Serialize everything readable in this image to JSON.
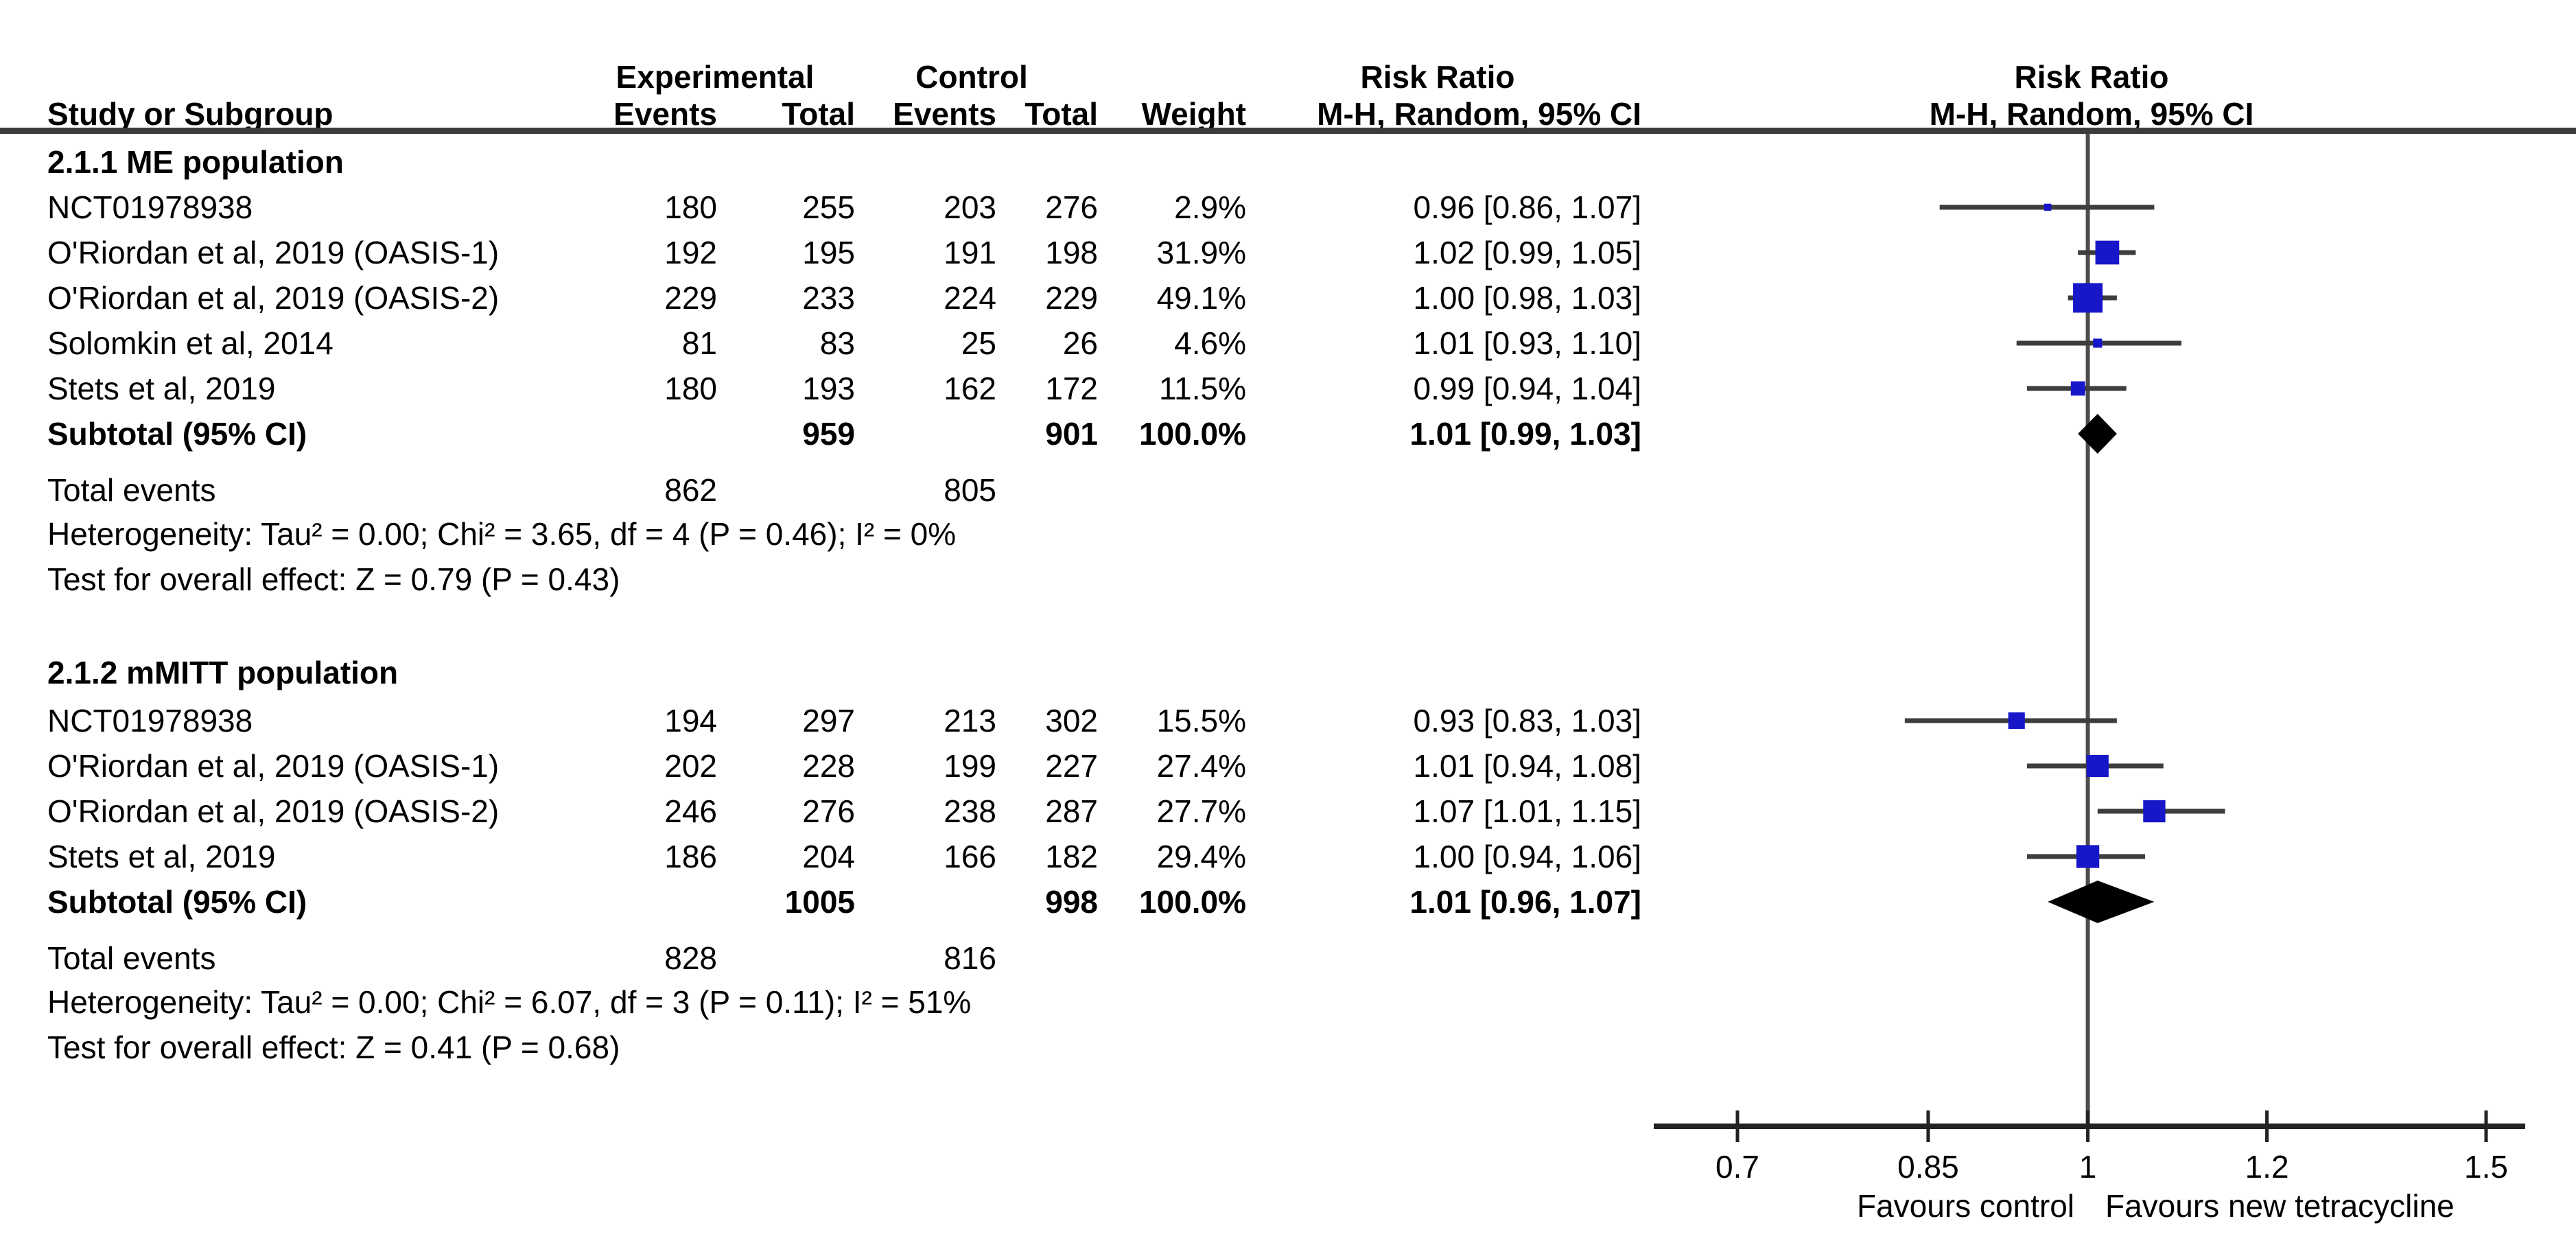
{
  "table_header": {
    "study_col": "Study or Subgroup",
    "experimental_group": "Experimental",
    "control_group": "Control",
    "events": "Events",
    "total": "Total",
    "weight": "Weight",
    "risk_ratio_col_title": "Risk Ratio",
    "risk_ratio_col_sub": "M-H, Random, 95% CI",
    "risk_ratio_plot_title": "Risk Ratio",
    "risk_ratio_plot_sub": "M-H, Random, 95% CI"
  },
  "chart_data": {
    "type": "forest",
    "scale": "log",
    "effect_measure": "Risk Ratio (M-H, Random, 95% CI)",
    "axis": {
      "ticks": [
        0.7,
        0.85,
        1,
        1.2,
        1.5
      ],
      "tick_labels": [
        "0.7",
        "0.85",
        "1",
        "1.2",
        "1.5"
      ],
      "null_line": 1,
      "favours_left": "Favours control",
      "favours_right": "Favours new tetracycline"
    },
    "marker_color": "#1717c9",
    "diamond_color": "#000000",
    "groups": [
      {
        "title": "2.1.1 ME population",
        "studies": [
          {
            "name": "NCT01978938",
            "exp_events": 180,
            "exp_total": 255,
            "ctrl_events": 203,
            "ctrl_total": 276,
            "weight": "2.9%",
            "weight_pct": 2.9,
            "rr": 0.96,
            "ci_low": 0.86,
            "ci_high": 1.07,
            "rr_text": "0.96 [0.86, 1.07]"
          },
          {
            "name": "O'Riordan et al, 2019 (OASIS-1)",
            "exp_events": 192,
            "exp_total": 195,
            "ctrl_events": 191,
            "ctrl_total": 198,
            "weight": "31.9%",
            "weight_pct": 31.9,
            "rr": 1.02,
            "ci_low": 0.99,
            "ci_high": 1.05,
            "rr_text": "1.02 [0.99, 1.05]"
          },
          {
            "name": "O'Riordan et al, 2019 (OASIS-2)",
            "exp_events": 229,
            "exp_total": 233,
            "ctrl_events": 224,
            "ctrl_total": 229,
            "weight": "49.1%",
            "weight_pct": 49.1,
            "rr": 1.0,
            "ci_low": 0.98,
            "ci_high": 1.03,
            "rr_text": "1.00 [0.98, 1.03]"
          },
          {
            "name": "Solomkin et al, 2014",
            "exp_events": 81,
            "exp_total": 83,
            "ctrl_events": 25,
            "ctrl_total": 26,
            "weight": "4.6%",
            "weight_pct": 4.6,
            "rr": 1.01,
            "ci_low": 0.93,
            "ci_high": 1.1,
            "rr_text": "1.01 [0.93, 1.10]"
          },
          {
            "name": "Stets et al, 2019",
            "exp_events": 180,
            "exp_total": 193,
            "ctrl_events": 162,
            "ctrl_total": 172,
            "weight": "11.5%",
            "weight_pct": 11.5,
            "rr": 0.99,
            "ci_low": 0.94,
            "ci_high": 1.04,
            "rr_text": "0.99 [0.94, 1.04]"
          }
        ],
        "subtotal": {
          "label": "Subtotal (95% CI)",
          "exp_total": 959,
          "ctrl_total": 901,
          "weight": "100.0%",
          "rr": 1.01,
          "ci_low": 0.99,
          "ci_high": 1.03,
          "rr_text": "1.01 [0.99, 1.03]"
        },
        "total_events": {
          "label": "Total events",
          "exp": 862,
          "ctrl": 805
        },
        "heterogeneity": "Heterogeneity: Tau² = 0.00; Chi² = 3.65, df = 4 (P = 0.46); I² = 0%",
        "overall_effect": "Test for overall effect: Z = 0.79 (P = 0.43)"
      },
      {
        "title": "2.1.2 mMITT population",
        "studies": [
          {
            "name": "NCT01978938",
            "exp_events": 194,
            "exp_total": 297,
            "ctrl_events": 213,
            "ctrl_total": 302,
            "weight": "15.5%",
            "weight_pct": 15.5,
            "rr": 0.93,
            "ci_low": 0.83,
            "ci_high": 1.03,
            "rr_text": "0.93 [0.83, 1.03]"
          },
          {
            "name": "O'Riordan et al, 2019 (OASIS-1)",
            "exp_events": 202,
            "exp_total": 228,
            "ctrl_events": 199,
            "ctrl_total": 227,
            "weight": "27.4%",
            "weight_pct": 27.4,
            "rr": 1.01,
            "ci_low": 0.94,
            "ci_high": 1.08,
            "rr_text": "1.01 [0.94, 1.08]"
          },
          {
            "name": "O'Riordan et al, 2019 (OASIS-2)",
            "exp_events": 246,
            "exp_total": 276,
            "ctrl_events": 238,
            "ctrl_total": 287,
            "weight": "27.7%",
            "weight_pct": 27.7,
            "rr": 1.07,
            "ci_low": 1.01,
            "ci_high": 1.15,
            "rr_text": "1.07 [1.01, 1.15]"
          },
          {
            "name": "Stets et al, 2019",
            "exp_events": 186,
            "exp_total": 204,
            "ctrl_events": 166,
            "ctrl_total": 182,
            "weight": "29.4%",
            "weight_pct": 29.4,
            "rr": 1.0,
            "ci_low": 0.94,
            "ci_high": 1.06,
            "rr_text": "1.00 [0.94, 1.06]"
          }
        ],
        "subtotal": {
          "label": "Subtotal (95% CI)",
          "exp_total": 1005,
          "ctrl_total": 998,
          "weight": "100.0%",
          "rr": 1.01,
          "ci_low": 0.96,
          "ci_high": 1.07,
          "rr_text": "1.01 [0.96, 1.07]"
        },
        "total_events": {
          "label": "Total events",
          "exp": 828,
          "ctrl": 816
        },
        "heterogeneity": "Heterogeneity: Tau² = 0.00; Chi² = 6.07, df = 3 (P = 0.11); I² = 51%",
        "overall_effect": "Test for overall effect: Z = 0.41 (P = 0.68)"
      }
    ]
  }
}
